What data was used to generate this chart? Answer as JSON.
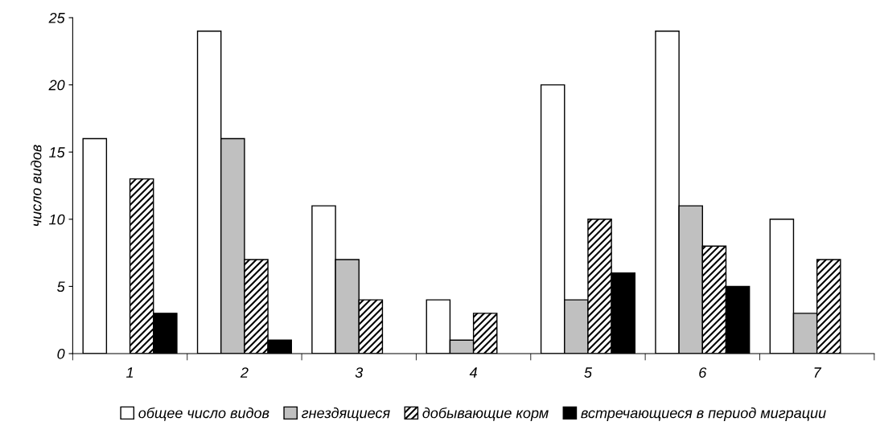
{
  "chart_data": {
    "type": "bar",
    "ylabel": "число видов",
    "categories": [
      "1",
      "2",
      "3",
      "4",
      "5",
      "6",
      "7"
    ],
    "series": [
      {
        "name": "общее число видов",
        "color": "#ffffff",
        "values": [
          16,
          24,
          11,
          4,
          20,
          24,
          10
        ]
      },
      {
        "name": "гнездящиеся",
        "color": "#c0c0c0",
        "values": [
          null,
          16,
          7,
          1,
          4,
          11,
          3
        ]
      },
      {
        "name": "добывающие корм",
        "color": "#000000",
        "values": [
          13,
          7,
          4,
          3,
          10,
          8,
          7
        ]
      },
      {
        "name": "встречающиеся в период миграции",
        "color": "#000000",
        "values": [
          3,
          1,
          null,
          null,
          6,
          5,
          null
        ]
      }
    ],
    "ylim": [
      0,
      25
    ],
    "yticks": [
      0,
      5,
      10,
      15,
      20,
      25
    ],
    "grid": false,
    "legend": "bottom"
  }
}
